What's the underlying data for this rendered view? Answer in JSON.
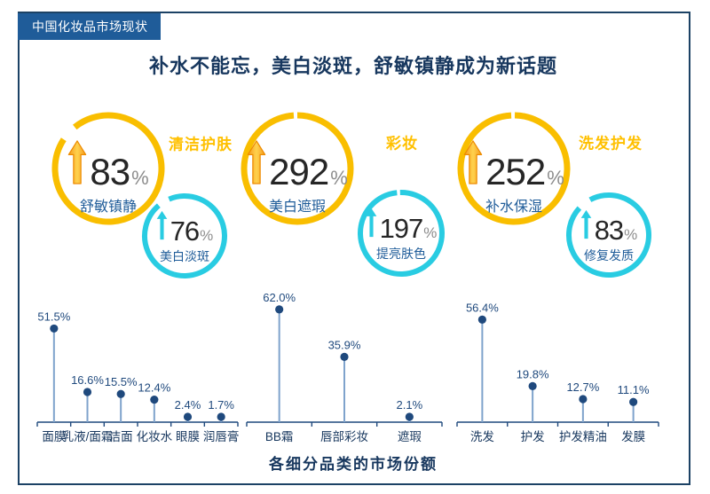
{
  "colors": {
    "ring_yellow": "#f9be00",
    "ring_cyan": "#29cce2",
    "category_accent": "#ffc000",
    "header_bg": "#1f5c99",
    "frame_navy": "#1c4265",
    "title_navy": "#17375e",
    "label_blue": "#1f5c99",
    "number_dark": "#262626",
    "percent_gray": "#8c8c8c",
    "dot_navy": "#1f497d",
    "stem_blue": "#7fa3cc",
    "arrow_orange": "#f9a21f",
    "arrow_orange_edge": "#ed8b00"
  },
  "header": {
    "badge": "中国化妆品市场现状"
  },
  "title": "补水不能忘，美白淡斑，舒敏镇静成为新话题",
  "groups": [
    {
      "category": "清洁护肤",
      "primary": {
        "value": "83",
        "unit": "%",
        "label": "舒敏镇静"
      },
      "secondary": {
        "value": "76",
        "unit": "%",
        "label": "美白淡斑"
      }
    },
    {
      "category": "彩妆",
      "primary": {
        "value": "292",
        "unit": "%",
        "label": "美白遮瑕"
      },
      "secondary": {
        "value": "197",
        "unit": "%",
        "label": "提亮肤色"
      }
    },
    {
      "category": "洗发护发",
      "primary": {
        "value": "252",
        "unit": "%",
        "label": "补水保湿"
      },
      "secondary": {
        "value": "83",
        "unit": "%",
        "label": "修复发质"
      }
    }
  ],
  "chart_data": [
    {
      "type": "lollipop",
      "title": "各细分品类的市场份额",
      "categories": [
        "面膜",
        "乳液/面霜",
        "洁面",
        "化妆水",
        "眼膜",
        "润唇膏"
      ],
      "values": [
        51.5,
        16.6,
        15.5,
        12.4,
        2.4,
        1.7
      ],
      "unit": "%",
      "ylim": [
        0,
        70
      ],
      "grid": false,
      "legend": "none"
    },
    {
      "type": "lollipop",
      "title": "各细分品类的市场份额",
      "categories": [
        "BB霜",
        "唇部彩妆",
        "遮瑕"
      ],
      "values": [
        62.0,
        35.9,
        2.1
      ],
      "unit": "%",
      "ylim": [
        0,
        70
      ],
      "grid": false,
      "legend": "none"
    },
    {
      "type": "lollipop",
      "title": "各细分品类的市场份额",
      "categories": [
        "洗发",
        "护发",
        "护发精油",
        "发膜"
      ],
      "values": [
        56.4,
        19.8,
        12.7,
        11.1
      ],
      "unit": "%",
      "ylim": [
        0,
        70
      ],
      "grid": false,
      "legend": "none"
    }
  ],
  "caption": "各细分品类的市场份额"
}
